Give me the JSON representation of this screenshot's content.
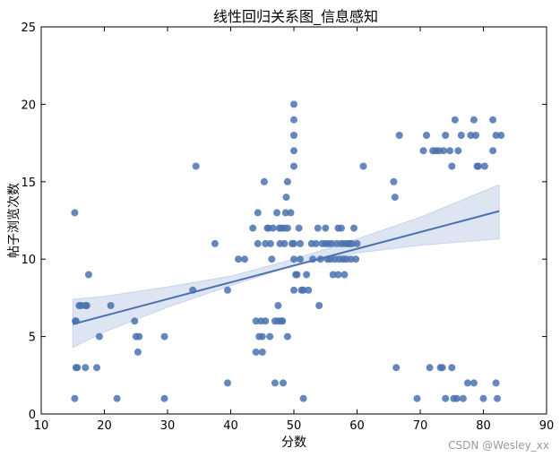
{
  "chart_data": {
    "type": "scatter",
    "title": "线性回归关系图_信息感知",
    "xlabel": "分数",
    "ylabel": "帖子浏览次数",
    "xlim": [
      10,
      90
    ],
    "ylim": [
      0,
      25
    ],
    "xticks": [
      10,
      20,
      30,
      40,
      50,
      60,
      70,
      80,
      90
    ],
    "yticks": [
      0,
      5,
      10,
      15,
      20,
      25
    ],
    "grid": false,
    "colors": {
      "points": "#4a72b0",
      "line": "#4a72b0",
      "band": "#c8d3ea"
    },
    "regression": {
      "x": [
        15,
        82.5
      ],
      "y": [
        5.8,
        13.1
      ]
    },
    "confidence_band": {
      "x": [
        15,
        20,
        30,
        40,
        50,
        60,
        70,
        82.5
      ],
      "lower": [
        4.3,
        5.3,
        6.9,
        8.3,
        9.6,
        10.4,
        10.9,
        11.3
      ],
      "upper": [
        7.4,
        7.6,
        8.2,
        8.9,
        10.0,
        11.3,
        12.7,
        14.8
      ]
    },
    "series": [
      {
        "points": [
          [
            15.3,
            13
          ],
          [
            15.3,
            1
          ],
          [
            15.4,
            6
          ],
          [
            15.5,
            6
          ],
          [
            15.5,
            3
          ],
          [
            15.7,
            3
          ],
          [
            16,
            7
          ],
          [
            16.3,
            7
          ],
          [
            17,
            7
          ],
          [
            17.2,
            7
          ],
          [
            17,
            3
          ],
          [
            17.5,
            9
          ],
          [
            18.8,
            3
          ],
          [
            19.2,
            5
          ],
          [
            21,
            7
          ],
          [
            22,
            1
          ],
          [
            24.8,
            6
          ],
          [
            25,
            5
          ],
          [
            25.3,
            4
          ],
          [
            25.5,
            5
          ],
          [
            29.5,
            5
          ],
          [
            29.5,
            1
          ],
          [
            34,
            8
          ],
          [
            34.5,
            16
          ],
          [
            37.5,
            11
          ],
          [
            39.5,
            2
          ],
          [
            39.5,
            8
          ],
          [
            41.2,
            10
          ],
          [
            42.2,
            10
          ],
          [
            43.5,
            12
          ],
          [
            44,
            4
          ],
          [
            44,
            6
          ],
          [
            44.3,
            13
          ],
          [
            44.3,
            11
          ],
          [
            44.5,
            5
          ],
          [
            44.8,
            6
          ],
          [
            45,
            5
          ],
          [
            45,
            4
          ],
          [
            45.3,
            15
          ],
          [
            45.5,
            6
          ],
          [
            45.5,
            11
          ],
          [
            45.8,
            12
          ],
          [
            46,
            12
          ],
          [
            46.2,
            5
          ],
          [
            46.3,
            11
          ],
          [
            46.5,
            10
          ],
          [
            46.7,
            12
          ],
          [
            47,
            6
          ],
          [
            47,
            2
          ],
          [
            47.3,
            13
          ],
          [
            47.5,
            6
          ],
          [
            47.5,
            7
          ],
          [
            47.7,
            12
          ],
          [
            47.8,
            11
          ],
          [
            48,
            12
          ],
          [
            48,
            6
          ],
          [
            48.2,
            6
          ],
          [
            48.3,
            2
          ],
          [
            48.5,
            12
          ],
          [
            48.5,
            11
          ],
          [
            48.7,
            13
          ],
          [
            48.8,
            14
          ],
          [
            49,
            5
          ],
          [
            49,
            15
          ],
          [
            49,
            12
          ],
          [
            49.5,
            13
          ],
          [
            49.7,
            11
          ],
          [
            50,
            20
          ],
          [
            50,
            19
          ],
          [
            50,
            18
          ],
          [
            50,
            17
          ],
          [
            50,
            16
          ],
          [
            50,
            11
          ],
          [
            50,
            10
          ],
          [
            50,
            8
          ],
          [
            50.3,
            9
          ],
          [
            50.5,
            9
          ],
          [
            50.8,
            12
          ],
          [
            51,
            11
          ],
          [
            51,
            10
          ],
          [
            51.2,
            8
          ],
          [
            51.5,
            8
          ],
          [
            51.5,
            1
          ],
          [
            52,
            9
          ],
          [
            52.3,
            8
          ],
          [
            52.8,
            11
          ],
          [
            53,
            10
          ],
          [
            53.5,
            11
          ],
          [
            53.8,
            12
          ],
          [
            54,
            7
          ],
          [
            54.2,
            10
          ],
          [
            54.5,
            11
          ],
          [
            55,
            11
          ],
          [
            55,
            12
          ],
          [
            55.3,
            10
          ],
          [
            55.5,
            11
          ],
          [
            55.8,
            10
          ],
          [
            56,
            11
          ],
          [
            56.2,
            9
          ],
          [
            56.5,
            10
          ],
          [
            56.8,
            11
          ],
          [
            57,
            12
          ],
          [
            57,
            9
          ],
          [
            57.2,
            10
          ],
          [
            57.5,
            11
          ],
          [
            57.5,
            12
          ],
          [
            57.8,
            10
          ],
          [
            58,
            11
          ],
          [
            58,
            9
          ],
          [
            58.3,
            10
          ],
          [
            58.5,
            11
          ],
          [
            58.8,
            11
          ],
          [
            59,
            10
          ],
          [
            59.2,
            11
          ],
          [
            59.5,
            12
          ],
          [
            59.8,
            10
          ],
          [
            60,
            11
          ],
          [
            61,
            16
          ],
          [
            65.8,
            15
          ],
          [
            66,
            14
          ],
          [
            66.2,
            3
          ],
          [
            66.7,
            18
          ],
          [
            69.5,
            1
          ],
          [
            70.5,
            17
          ],
          [
            71,
            18
          ],
          [
            71.5,
            3
          ],
          [
            72,
            17
          ],
          [
            72.5,
            17
          ],
          [
            73,
            17
          ],
          [
            73.2,
            3
          ],
          [
            73.5,
            3
          ],
          [
            73.7,
            17
          ],
          [
            74,
            18
          ],
          [
            74,
            1
          ],
          [
            74.7,
            17
          ],
          [
            75,
            16
          ],
          [
            75,
            3
          ],
          [
            75.3,
            1
          ],
          [
            75.5,
            19
          ],
          [
            75.8,
            1
          ],
          [
            76,
            17
          ],
          [
            76.5,
            18
          ],
          [
            76.8,
            1
          ],
          [
            77.5,
            2
          ],
          [
            78,
            18
          ],
          [
            78.5,
            19
          ],
          [
            78.5,
            2
          ],
          [
            78.8,
            18
          ],
          [
            79,
            16
          ],
          [
            79.2,
            16
          ],
          [
            80,
            1
          ],
          [
            80.2,
            16
          ],
          [
            81.5,
            19
          ],
          [
            81.5,
            17
          ],
          [
            82,
            18
          ],
          [
            82,
            2
          ],
          [
            82.2,
            1
          ],
          [
            82.8,
            18
          ]
        ]
      }
    ]
  },
  "watermark": "CSDN @Wesley_xx"
}
